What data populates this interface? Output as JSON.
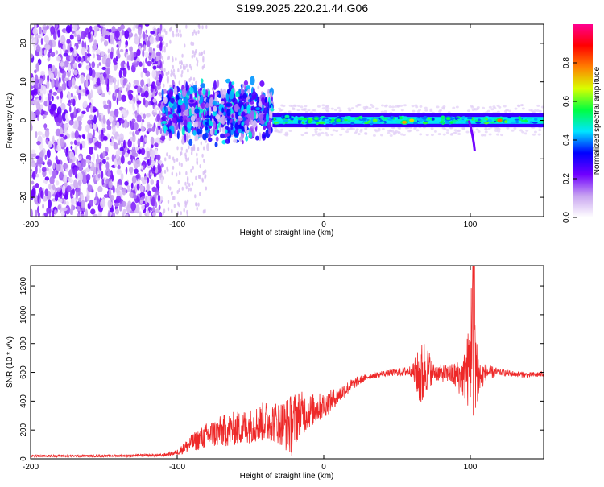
{
  "title": "S199.2025.220.21.44.G06",
  "chart_data": [
    {
      "type": "heatmap",
      "name": "spectrogram",
      "xlabel": "Height of straight line (km)",
      "ylabel": "Frequency (Hz)",
      "xlim": [
        -200,
        150
      ],
      "ylim": [
        -25,
        25
      ],
      "xticks": [
        -200,
        -100,
        0,
        100
      ],
      "yticks": [
        20,
        10,
        0,
        -10,
        -20
      ],
      "colorbar": {
        "label": "Normalized spectral amplitude",
        "range": [
          0,
          1
        ],
        "ticks": [
          0.0,
          0.2,
          0.4,
          0.6,
          0.8
        ],
        "colors": [
          "#ffffff",
          "#c8a4f0",
          "#7000ff",
          "#0000ff",
          "#00e5ff",
          "#00ff40",
          "#d8ff00",
          "#ff8000",
          "#ff0000",
          "#ff0090"
        ]
      },
      "regions": [
        {
          "x": [
            -200,
            -110
          ],
          "freq_band": [
            -25,
            25
          ],
          "level": 0.15,
          "description_of_pattern": "scattered noise"
        },
        {
          "x": [
            -110,
            -35
          ],
          "freq_band": [
            -8,
            12
          ],
          "level": 0.3
        },
        {
          "x": [
            -35,
            150
          ],
          "freq_band": [
            -1.5,
            1.5
          ],
          "level": 0.45,
          "center_freq": 0
        }
      ],
      "peaks": [
        {
          "x": -90,
          "y": 5,
          "level": 0.25
        },
        {
          "x": -65,
          "y": 4,
          "level": 0.35
        },
        {
          "x": -45,
          "y": 3,
          "level": 0.4
        },
        {
          "x": -25,
          "y": 1,
          "level": 0.5
        },
        {
          "x": -5,
          "y": 0.5,
          "level": 0.55
        },
        {
          "x": 10,
          "y": 0,
          "level": 0.55
        },
        {
          "x": 35,
          "y": 0,
          "level": 0.6
        },
        {
          "x": 55,
          "y": -0.5,
          "level": 0.75
        },
        {
          "x": 60,
          "y": 0,
          "level": 0.7
        },
        {
          "x": 85,
          "y": 0.5,
          "level": 0.55
        },
        {
          "x": 120,
          "y": 0,
          "level": 0.8
        }
      ],
      "dips": [
        {
          "x": 102,
          "y_to": -8
        }
      ]
    },
    {
      "type": "line",
      "name": "snr",
      "xlabel": "Height of straight line (km)",
      "ylabel": "SNR (10 * v/v)",
      "xlim": [
        -200,
        150
      ],
      "ylim": [
        0,
        1340
      ],
      "xticks": [
        -200,
        -100,
        0,
        100
      ],
      "yticks": [
        0,
        200,
        400,
        600,
        800,
        1000,
        1200
      ],
      "color": "#ee2828",
      "series": [
        {
          "x": [
            -200,
            -150,
            -110,
            -100,
            -90,
            -80,
            -70,
            -60,
            -50,
            -40,
            -30,
            -22,
            -18,
            -10,
            0,
            10,
            20,
            30,
            40,
            50,
            60,
            67,
            69,
            75,
            85,
            95,
            100,
            102,
            104,
            106,
            110,
            120,
            130,
            140,
            150
          ],
          "values": [
            20,
            20,
            25,
            45,
            110,
            160,
            190,
            210,
            230,
            260,
            250,
            230,
            300,
            330,
            370,
            440,
            520,
            570,
            590,
            600,
            610,
            560,
            640,
            600,
            590,
            560,
            650,
            1340,
            620,
            560,
            600,
            600,
            590,
            580,
            590
          ],
          "spike_amplitude": [
            8,
            8,
            10,
            20,
            60,
            90,
            110,
            120,
            120,
            140,
            150,
            220,
            180,
            120,
            90,
            60,
            40,
            20,
            20,
            25,
            40,
            260,
            200,
            60,
            60,
            140,
            330,
            600,
            380,
            150,
            60,
            25,
            20,
            20,
            20
          ]
        }
      ]
    }
  ]
}
